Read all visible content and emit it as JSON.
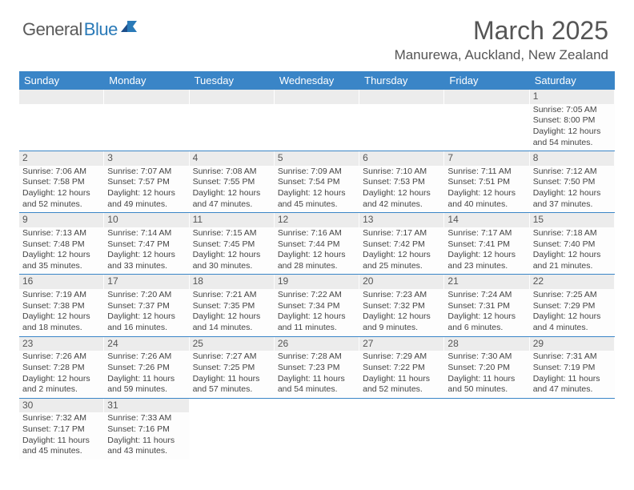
{
  "logo": {
    "general": "General",
    "blue": "Blue"
  },
  "header": {
    "title": "March 2025",
    "location": "Manurewa, Auckland, New Zealand"
  },
  "colors": {
    "header_bg": "#3a85c7",
    "header_fg": "#ffffff",
    "daynum_bg": "#ececec",
    "border": "#3a85c7",
    "text": "#444444",
    "logo_gray": "#5a5a5a",
    "logo_blue": "#2a7ab8"
  },
  "day_headers": [
    "Sunday",
    "Monday",
    "Tuesday",
    "Wednesday",
    "Thursday",
    "Friday",
    "Saturday"
  ],
  "weeks": [
    [
      {
        "n": "",
        "sr": "",
        "ss": "",
        "dl1": "",
        "dl2": ""
      },
      {
        "n": "",
        "sr": "",
        "ss": "",
        "dl1": "",
        "dl2": ""
      },
      {
        "n": "",
        "sr": "",
        "ss": "",
        "dl1": "",
        "dl2": ""
      },
      {
        "n": "",
        "sr": "",
        "ss": "",
        "dl1": "",
        "dl2": ""
      },
      {
        "n": "",
        "sr": "",
        "ss": "",
        "dl1": "",
        "dl2": ""
      },
      {
        "n": "",
        "sr": "",
        "ss": "",
        "dl1": "",
        "dl2": ""
      },
      {
        "n": "1",
        "sr": "Sunrise: 7:05 AM",
        "ss": "Sunset: 8:00 PM",
        "dl1": "Daylight: 12 hours",
        "dl2": "and 54 minutes."
      }
    ],
    [
      {
        "n": "2",
        "sr": "Sunrise: 7:06 AM",
        "ss": "Sunset: 7:58 PM",
        "dl1": "Daylight: 12 hours",
        "dl2": "and 52 minutes."
      },
      {
        "n": "3",
        "sr": "Sunrise: 7:07 AM",
        "ss": "Sunset: 7:57 PM",
        "dl1": "Daylight: 12 hours",
        "dl2": "and 49 minutes."
      },
      {
        "n": "4",
        "sr": "Sunrise: 7:08 AM",
        "ss": "Sunset: 7:55 PM",
        "dl1": "Daylight: 12 hours",
        "dl2": "and 47 minutes."
      },
      {
        "n": "5",
        "sr": "Sunrise: 7:09 AM",
        "ss": "Sunset: 7:54 PM",
        "dl1": "Daylight: 12 hours",
        "dl2": "and 45 minutes."
      },
      {
        "n": "6",
        "sr": "Sunrise: 7:10 AM",
        "ss": "Sunset: 7:53 PM",
        "dl1": "Daylight: 12 hours",
        "dl2": "and 42 minutes."
      },
      {
        "n": "7",
        "sr": "Sunrise: 7:11 AM",
        "ss": "Sunset: 7:51 PM",
        "dl1": "Daylight: 12 hours",
        "dl2": "and 40 minutes."
      },
      {
        "n": "8",
        "sr": "Sunrise: 7:12 AM",
        "ss": "Sunset: 7:50 PM",
        "dl1": "Daylight: 12 hours",
        "dl2": "and 37 minutes."
      }
    ],
    [
      {
        "n": "9",
        "sr": "Sunrise: 7:13 AM",
        "ss": "Sunset: 7:48 PM",
        "dl1": "Daylight: 12 hours",
        "dl2": "and 35 minutes."
      },
      {
        "n": "10",
        "sr": "Sunrise: 7:14 AM",
        "ss": "Sunset: 7:47 PM",
        "dl1": "Daylight: 12 hours",
        "dl2": "and 33 minutes."
      },
      {
        "n": "11",
        "sr": "Sunrise: 7:15 AM",
        "ss": "Sunset: 7:45 PM",
        "dl1": "Daylight: 12 hours",
        "dl2": "and 30 minutes."
      },
      {
        "n": "12",
        "sr": "Sunrise: 7:16 AM",
        "ss": "Sunset: 7:44 PM",
        "dl1": "Daylight: 12 hours",
        "dl2": "and 28 minutes."
      },
      {
        "n": "13",
        "sr": "Sunrise: 7:17 AM",
        "ss": "Sunset: 7:42 PM",
        "dl1": "Daylight: 12 hours",
        "dl2": "and 25 minutes."
      },
      {
        "n": "14",
        "sr": "Sunrise: 7:17 AM",
        "ss": "Sunset: 7:41 PM",
        "dl1": "Daylight: 12 hours",
        "dl2": "and 23 minutes."
      },
      {
        "n": "15",
        "sr": "Sunrise: 7:18 AM",
        "ss": "Sunset: 7:40 PM",
        "dl1": "Daylight: 12 hours",
        "dl2": "and 21 minutes."
      }
    ],
    [
      {
        "n": "16",
        "sr": "Sunrise: 7:19 AM",
        "ss": "Sunset: 7:38 PM",
        "dl1": "Daylight: 12 hours",
        "dl2": "and 18 minutes."
      },
      {
        "n": "17",
        "sr": "Sunrise: 7:20 AM",
        "ss": "Sunset: 7:37 PM",
        "dl1": "Daylight: 12 hours",
        "dl2": "and 16 minutes."
      },
      {
        "n": "18",
        "sr": "Sunrise: 7:21 AM",
        "ss": "Sunset: 7:35 PM",
        "dl1": "Daylight: 12 hours",
        "dl2": "and 14 minutes."
      },
      {
        "n": "19",
        "sr": "Sunrise: 7:22 AM",
        "ss": "Sunset: 7:34 PM",
        "dl1": "Daylight: 12 hours",
        "dl2": "and 11 minutes."
      },
      {
        "n": "20",
        "sr": "Sunrise: 7:23 AM",
        "ss": "Sunset: 7:32 PM",
        "dl1": "Daylight: 12 hours",
        "dl2": "and 9 minutes."
      },
      {
        "n": "21",
        "sr": "Sunrise: 7:24 AM",
        "ss": "Sunset: 7:31 PM",
        "dl1": "Daylight: 12 hours",
        "dl2": "and 6 minutes."
      },
      {
        "n": "22",
        "sr": "Sunrise: 7:25 AM",
        "ss": "Sunset: 7:29 PM",
        "dl1": "Daylight: 12 hours",
        "dl2": "and 4 minutes."
      }
    ],
    [
      {
        "n": "23",
        "sr": "Sunrise: 7:26 AM",
        "ss": "Sunset: 7:28 PM",
        "dl1": "Daylight: 12 hours",
        "dl2": "and 2 minutes."
      },
      {
        "n": "24",
        "sr": "Sunrise: 7:26 AM",
        "ss": "Sunset: 7:26 PM",
        "dl1": "Daylight: 11 hours",
        "dl2": "and 59 minutes."
      },
      {
        "n": "25",
        "sr": "Sunrise: 7:27 AM",
        "ss": "Sunset: 7:25 PM",
        "dl1": "Daylight: 11 hours",
        "dl2": "and 57 minutes."
      },
      {
        "n": "26",
        "sr": "Sunrise: 7:28 AM",
        "ss": "Sunset: 7:23 PM",
        "dl1": "Daylight: 11 hours",
        "dl2": "and 54 minutes."
      },
      {
        "n": "27",
        "sr": "Sunrise: 7:29 AM",
        "ss": "Sunset: 7:22 PM",
        "dl1": "Daylight: 11 hours",
        "dl2": "and 52 minutes."
      },
      {
        "n": "28",
        "sr": "Sunrise: 7:30 AM",
        "ss": "Sunset: 7:20 PM",
        "dl1": "Daylight: 11 hours",
        "dl2": "and 50 minutes."
      },
      {
        "n": "29",
        "sr": "Sunrise: 7:31 AM",
        "ss": "Sunset: 7:19 PM",
        "dl1": "Daylight: 11 hours",
        "dl2": "and 47 minutes."
      }
    ],
    [
      {
        "n": "30",
        "sr": "Sunrise: 7:32 AM",
        "ss": "Sunset: 7:17 PM",
        "dl1": "Daylight: 11 hours",
        "dl2": "and 45 minutes."
      },
      {
        "n": "31",
        "sr": "Sunrise: 7:33 AM",
        "ss": "Sunset: 7:16 PM",
        "dl1": "Daylight: 11 hours",
        "dl2": "and 43 minutes."
      },
      {
        "n": "",
        "sr": "",
        "ss": "",
        "dl1": "",
        "dl2": ""
      },
      {
        "n": "",
        "sr": "",
        "ss": "",
        "dl1": "",
        "dl2": ""
      },
      {
        "n": "",
        "sr": "",
        "ss": "",
        "dl1": "",
        "dl2": ""
      },
      {
        "n": "",
        "sr": "",
        "ss": "",
        "dl1": "",
        "dl2": ""
      },
      {
        "n": "",
        "sr": "",
        "ss": "",
        "dl1": "",
        "dl2": ""
      }
    ]
  ]
}
